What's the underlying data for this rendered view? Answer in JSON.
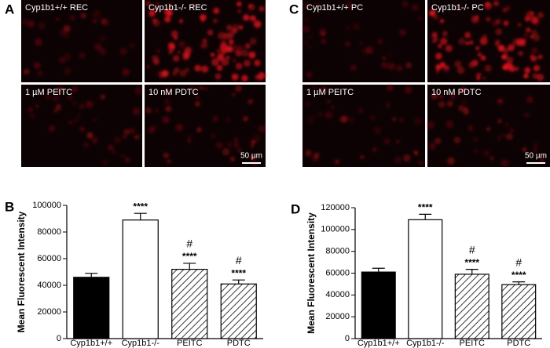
{
  "image_panels": [
    {
      "letter": "A",
      "labels": [
        "Cyp1b1+/+ REC",
        "Cyp1b1-/- REC",
        "1 µM PEITC",
        "10 nM PDTC"
      ],
      "scale_bar": "50 µm"
    },
    {
      "letter": "C",
      "labels": [
        "Cyp1b1+/+ PC",
        "Cyp1b1-/- PC",
        "1 µM PEITC",
        "10 nM PDTC"
      ],
      "scale_bar": "50 µm"
    }
  ],
  "chart_data": [
    {
      "type": "bar",
      "panel_label": "B",
      "y_label": "Mean Fluorescent Intensity",
      "categories": [
        "Cyp1b1+/+",
        "Cyp1b1-/-",
        "PEITC",
        "PDTC"
      ],
      "values": [
        46000,
        89000,
        52000,
        41000
      ],
      "errors": [
        3000,
        5000,
        4500,
        3000
      ],
      "fills": [
        "black",
        "white",
        "hatch",
        "hatch"
      ],
      "significance": [
        null,
        "****",
        "****",
        "****"
      ],
      "hash": [
        null,
        null,
        "#",
        "#"
      ],
      "ylim": [
        0,
        100000
      ],
      "yticks": [
        0,
        20000,
        40000,
        60000,
        80000,
        100000
      ]
    },
    {
      "type": "bar",
      "panel_label": "D",
      "y_label": "Mean Fluorescent Intensity",
      "categories": [
        "Cyp1b1+/+",
        "Cyp1b1-/-",
        "PEITC",
        "PDTC"
      ],
      "values": [
        61000,
        109000,
        59000,
        49500
      ],
      "errors": [
        3500,
        5000,
        4500,
        2500
      ],
      "fills": [
        "black",
        "white",
        "hatch",
        "hatch"
      ],
      "significance": [
        null,
        "****",
        "****",
        "****"
      ],
      "hash": [
        null,
        null,
        "#",
        "#"
      ],
      "ylim": [
        0,
        120000
      ],
      "yticks": [
        0,
        20000,
        40000,
        60000,
        80000,
        100000,
        120000
      ]
    }
  ]
}
